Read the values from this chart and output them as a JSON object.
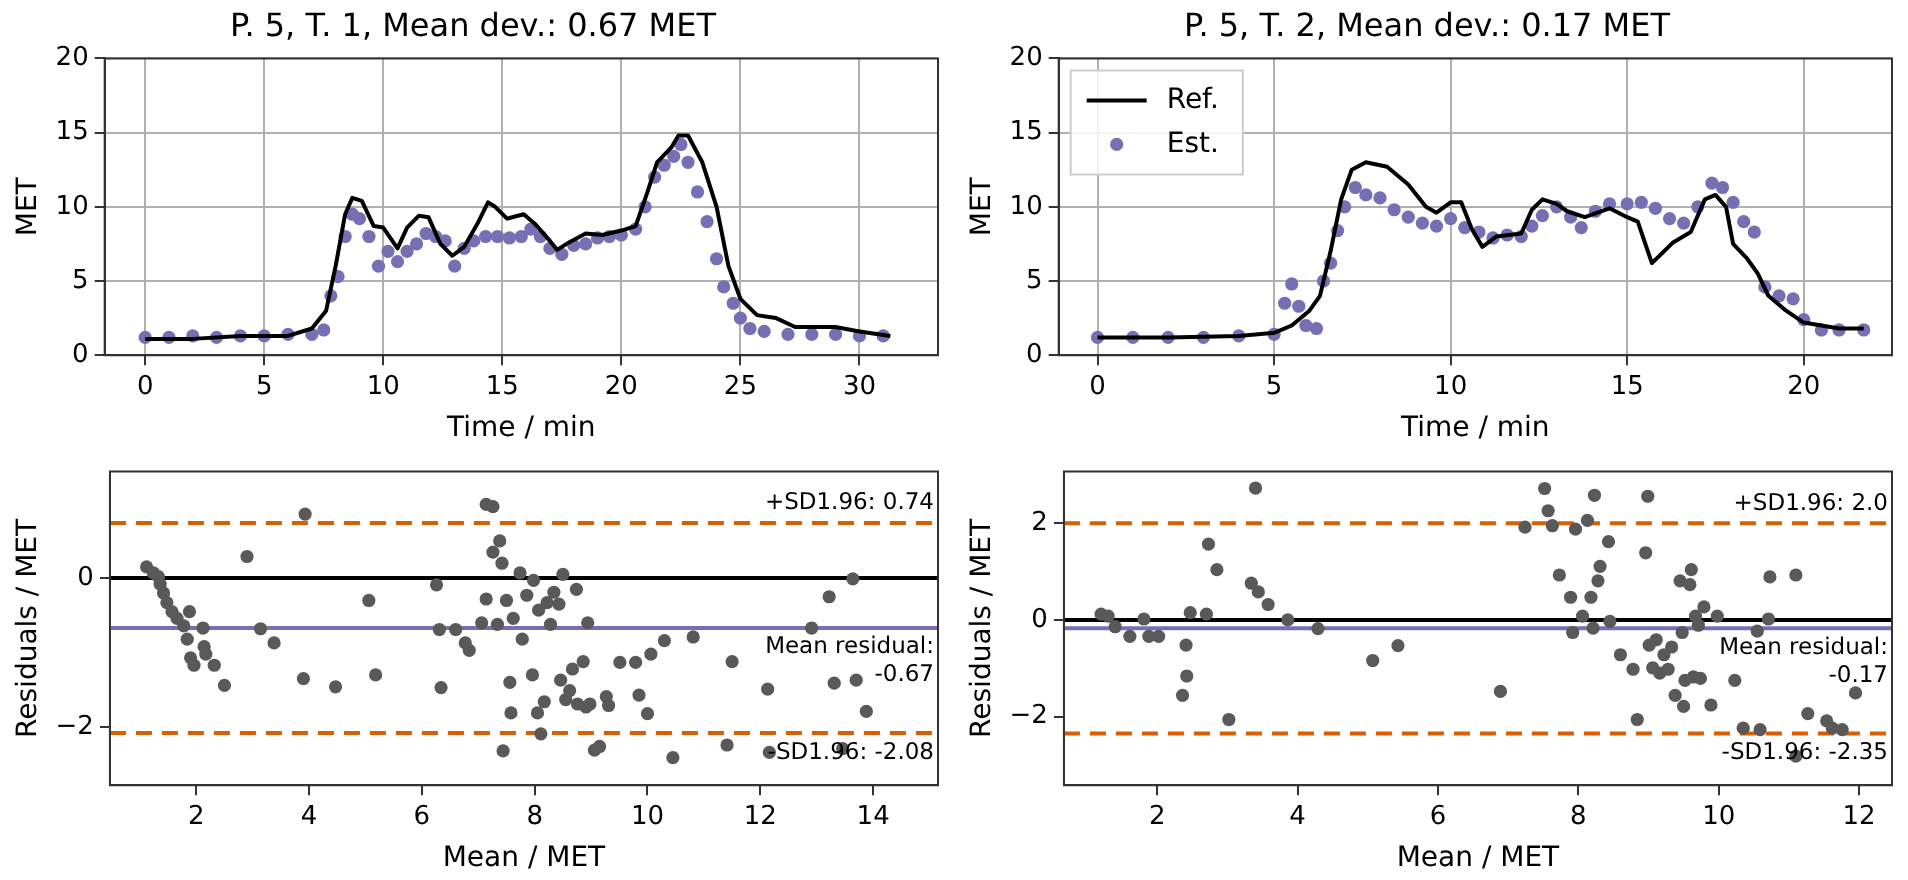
{
  "chart_data": [
    {
      "type": "line",
      "title": "P. 5, T. 1, Mean dev.: 0.67 MET",
      "xlabel": "Time / min",
      "ylabel": "MET",
      "xlim": [
        -1.7,
        33.3
      ],
      "ylim": [
        0,
        20
      ],
      "xticks": [
        0,
        5,
        10,
        15,
        20,
        25,
        30
      ],
      "yticks": [
        0,
        5,
        10,
        15,
        20
      ],
      "grid": true,
      "legend": false,
      "series": [
        {
          "color": "#000000",
          "x": [
            0,
            2,
            4,
            6,
            7,
            7.6,
            8,
            8.4,
            8.7,
            9.1,
            9.6,
            10,
            10.6,
            11,
            11.5,
            11.9,
            12.4,
            12.9,
            13.4,
            14,
            14.4,
            14.7,
            15.2,
            15.9,
            16.4,
            17,
            17.3,
            17.8,
            18.5,
            19.2,
            20,
            20.6,
            21.1,
            21.5,
            22.1,
            22.4,
            22.8,
            23.4,
            24,
            24.5,
            25,
            25.7,
            26.5,
            27.3,
            29,
            30,
            31.3
          ],
          "values": [
            1.1,
            1.1,
            1.3,
            1.3,
            1.8,
            3,
            6,
            9.5,
            10.6,
            10.4,
            8.7,
            8.6,
            7.2,
            8.6,
            9.4,
            9.3,
            7.5,
            6.7,
            7.3,
            9,
            10.3,
            10,
            9.2,
            9.5,
            8.8,
            7.7,
            7.1,
            7.6,
            8.2,
            8.1,
            8.4,
            8.7,
            11,
            13,
            14,
            14.8,
            14.8,
            13,
            10,
            6,
            3.8,
            2.7,
            2.5,
            1.9,
            1.9,
            1.6,
            1.3
          ]
        },
        {
          "type": "scatter",
          "marker": "circle",
          "color": "#7570b3",
          "x": [
            0,
            1,
            2,
            3,
            4,
            5,
            6,
            7,
            7.5,
            7.8,
            8.1,
            8.4,
            8.7,
            9,
            9.4,
            9.8,
            10.2,
            10.6,
            11,
            11.4,
            11.8,
            12.2,
            12.6,
            13,
            13.4,
            13.8,
            14.3,
            14.8,
            15.3,
            15.8,
            16.2,
            16.6,
            17,
            17.5,
            18,
            18.5,
            19,
            19.5,
            20,
            20.6,
            21,
            21.4,
            21.8,
            22.2,
            22.5,
            22.8,
            23.2,
            23.6,
            24,
            24.3,
            24.7,
            25,
            25.4,
            26,
            27,
            28,
            29,
            30,
            31
          ],
          "values": [
            1.2,
            1.2,
            1.3,
            1.2,
            1.3,
            1.3,
            1.4,
            1.4,
            1.7,
            4,
            5.3,
            8,
            9.5,
            9.2,
            8,
            6,
            7,
            6.3,
            7,
            7.5,
            8.2,
            8,
            7.7,
            6,
            7.2,
            7.7,
            8,
            8,
            7.9,
            8,
            8.5,
            8,
            7.2,
            6.8,
            7.4,
            7.5,
            7.9,
            8,
            8.1,
            8.5,
            10,
            12,
            12.8,
            13.4,
            14.2,
            13,
            11,
            9,
            6.5,
            4.6,
            3.5,
            2.5,
            1.8,
            1.6,
            1.4,
            1.4,
            1.4,
            1.3,
            1.3
          ]
        }
      ]
    },
    {
      "type": "line",
      "title": "P. 5, T. 2, Mean dev.: 0.17 MET",
      "xlabel": "Time / min",
      "ylabel": "MET",
      "xlim": [
        -1.1,
        22.5
      ],
      "ylim": [
        0,
        20
      ],
      "xticks": [
        0,
        5,
        10,
        15,
        20
      ],
      "yticks": [
        0,
        5,
        10,
        15,
        20
      ],
      "grid": true,
      "legend": "top left",
      "series": [
        {
          "name": "Ref.",
          "color": "#000000",
          "x": [
            0,
            2,
            4,
            5,
            5.5,
            6,
            6.3,
            6.6,
            6.9,
            7.2,
            7.6,
            8.2,
            8.8,
            9.3,
            9.6,
            10,
            10.3,
            10.6,
            10.9,
            11.3,
            12,
            12.3,
            12.6,
            13,
            13.3,
            13.8,
            14.5,
            15,
            15.3,
            15.7,
            16.3,
            16.8,
            17.2,
            17.5,
            17.8,
            18,
            18.4,
            18.7,
            19,
            19.5,
            20,
            21,
            21.7
          ],
          "values": [
            1.2,
            1.2,
            1.3,
            1.5,
            2,
            3,
            4,
            7,
            10.5,
            12.5,
            13,
            12.7,
            11.5,
            10,
            9.6,
            10.3,
            10.3,
            8.5,
            7.3,
            8,
            8.2,
            9.8,
            10.5,
            10.2,
            9.7,
            9.3,
            9.9,
            9.3,
            9,
            6.2,
            7.6,
            8.3,
            10.5,
            10.8,
            10,
            7.5,
            6.5,
            5.5,
            4,
            3,
            2.2,
            1.8,
            1.8
          ]
        },
        {
          "name": "Est.",
          "type": "scatter",
          "marker": "circle",
          "color": "#7570b3",
          "x": [
            0,
            1,
            2,
            3,
            4,
            5,
            5.3,
            5.5,
            5.7,
            5.9,
            6.2,
            6.4,
            6.6,
            6.8,
            7,
            7.3,
            7.6,
            8,
            8.4,
            8.8,
            9.2,
            9.6,
            10,
            10.4,
            10.8,
            11.2,
            11.6,
            12,
            12.3,
            12.6,
            13,
            13.4,
            13.7,
            14.1,
            14.5,
            15,
            15.4,
            15.8,
            16.2,
            16.6,
            17,
            17.4,
            17.7,
            18,
            18.3,
            18.6,
            18.9,
            19.3,
            19.7,
            20,
            20.5,
            21,
            21.7
          ],
          "values": [
            1.2,
            1.2,
            1.2,
            1.2,
            1.3,
            1.4,
            3.5,
            4.8,
            3.3,
            2,
            1.8,
            5,
            6.2,
            8.4,
            10,
            11.3,
            10.8,
            10.6,
            9.8,
            9.3,
            8.9,
            8.7,
            9.2,
            8.6,
            8.3,
            7.9,
            8.1,
            8,
            8.7,
            9.4,
            10,
            9.3,
            8.6,
            9.7,
            10.2,
            10.2,
            10.3,
            9.9,
            9.2,
            8.9,
            10,
            11.6,
            11.3,
            10.3,
            9,
            8.3,
            4.6,
            4,
            3.8,
            2.4,
            1.7,
            1.7,
            1.7
          ]
        }
      ]
    },
    {
      "type": "scatter",
      "xlabel": "Mean / MET",
      "ylabel": "Residuals / MET",
      "xlim": [
        0.47,
        15.15
      ],
      "ylim": [
        -2.78,
        1.43
      ],
      "xticks": [
        2,
        4,
        6,
        8,
        10,
        12,
        14
      ],
      "yticks": [
        -2,
        0
      ],
      "grid": false,
      "marker": "circle",
      "color": "#595959",
      "x": [
        1.12,
        1.24,
        1.33,
        1.36,
        1.42,
        1.48,
        1.57,
        1.66,
        1.78,
        1.88,
        1.84,
        1.9,
        1.96,
        2.12,
        2.14,
        2.17,
        2.32,
        2.5,
        2.9,
        3.14,
        3.38,
        3.93,
        3.9,
        4.47,
        5.06,
        5.18,
        6.26,
        6.31,
        6.34,
        6.6,
        6.77,
        6.84,
        7.06,
        7.14,
        7.26,
        7.14,
        7.26,
        7.38,
        7.42,
        7.34,
        7.5,
        7.44,
        7.56,
        7.58,
        7.62,
        7.74,
        7.78,
        7.86,
        7.98,
        7.96,
        8.07,
        8.05,
        8.11,
        8.17,
        8.22,
        8.28,
        8.34,
        8.43,
        8.46,
        8.5,
        8.55,
        8.62,
        8.67,
        8.74,
        8.76,
        8.86,
        8.91,
        8.94,
        8.98,
        9.06,
        9.15,
        9.27,
        9.31,
        9.51,
        9.79,
        9.85,
        10.0,
        10.06,
        10.3,
        10.45,
        10.81,
        11.41,
        11.5,
        12.13,
        12.16,
        12.91,
        13.22,
        13.31,
        13.46,
        13.64,
        13.7,
        13.88
      ],
      "values": [
        0.15,
        0.07,
        0.02,
        -0.08,
        -0.2,
        -0.33,
        -0.45,
        -0.54,
        -0.64,
        -0.45,
        -0.82,
        -1.07,
        -1.17,
        -0.67,
        -0.92,
        -1.02,
        -1.17,
        -1.44,
        0.29,
        -0.68,
        -0.87,
        0.86,
        -1.35,
        -1.46,
        -0.3,
        -1.3,
        -0.09,
        -0.69,
        -1.47,
        -0.69,
        -0.87,
        -0.97,
        -0.6,
        0.99,
        0.96,
        -0.28,
        0.35,
        0.5,
        0.2,
        -0.62,
        -0.3,
        -2.32,
        -1.4,
        -1.81,
        -0.54,
        0.07,
        -0.82,
        -0.23,
        -0.03,
        -1.3,
        -0.43,
        -1.81,
        -2.09,
        -1.66,
        -0.33,
        -0.62,
        -0.19,
        -0.35,
        -1.37,
        0.05,
        -1.63,
        -1.51,
        -1.22,
        -0.15,
        -1.69,
        -1.12,
        -1.73,
        -0.6,
        -1.69,
        -2.31,
        -2.26,
        -1.59,
        -1.71,
        -1.13,
        -1.13,
        -1.57,
        -1.82,
        -1.02,
        -0.84,
        -2.41,
        -0.79,
        -2.24,
        -1.12,
        -1.49,
        -2.34,
        -0.67,
        -0.25,
        -1.41,
        -2.29,
        -0.01,
        -1.37,
        -1.79
      ],
      "ref_lines": [
        {
          "axis": "y",
          "value": 0,
          "color": "#000000",
          "line_style": "solid"
        },
        {
          "axis": "y",
          "value": -0.67,
          "label": "Mean residual:\n-0.67",
          "color": "#7570b3",
          "line_style": "solid"
        },
        {
          "axis": "y",
          "value": 0.74,
          "label": "+SD1.96: 0.74",
          "color": "#d95f02",
          "line_style": "dashed"
        },
        {
          "axis": "y",
          "value": -2.08,
          "label": "-SD1.96: -2.08",
          "color": "#d95f02",
          "line_style": "dashed"
        }
      ]
    },
    {
      "type": "scatter",
      "xlabel": "Mean / MET",
      "ylabel": "Residuals / MET",
      "xlim": [
        0.67,
        12.47
      ],
      "ylim": [
        -3.42,
        3.07
      ],
      "xticks": [
        2,
        4,
        6,
        8,
        10,
        12
      ],
      "yticks": [
        -2,
        0,
        2
      ],
      "grid": false,
      "marker": "circle",
      "color": "#595959",
      "x": [
        1.2,
        1.3,
        1.4,
        1.61,
        1.81,
        1.88,
        2.02,
        2.36,
        2.41,
        2.42,
        2.47,
        2.7,
        2.73,
        2.85,
        3.02,
        3.34,
        3.4,
        3.44,
        3.58,
        3.86,
        4.29,
        5.07,
        5.43,
        6.89,
        7.24,
        7.52,
        7.57,
        7.63,
        7.73,
        7.89,
        7.92,
        7.96,
        8.06,
        8.13,
        8.18,
        8.21,
        8.23,
        8.28,
        8.31,
        8.43,
        8.45,
        8.6,
        8.78,
        8.84,
        8.96,
        8.99,
        9.01,
        9.06,
        9.11,
        9.16,
        9.22,
        9.28,
        9.33,
        9.38,
        9.45,
        9.48,
        9.5,
        9.52,
        9.59,
        9.61,
        9.64,
        9.67,
        9.71,
        9.74,
        9.79,
        9.89,
        9.98,
        10.23,
        10.35,
        10.55,
        10.59,
        10.71,
        10.73,
        11.1,
        11.1,
        11.27,
        11.54,
        11.62,
        11.76,
        11.95
      ],
      "values": [
        0.12,
        0.08,
        -0.14,
        -0.34,
        0.02,
        -0.34,
        -0.34,
        -1.56,
        -0.52,
        -1.16,
        0.15,
        0.12,
        1.57,
        1.04,
        -2.06,
        0.76,
        2.73,
        0.58,
        0.32,
        0,
        -0.18,
        -0.84,
        -0.53,
        -1.48,
        1.92,
        2.72,
        2.26,
        1.95,
        0.93,
        0.47,
        -0.26,
        1.88,
        0.08,
        2.06,
        0.47,
        -0.17,
        2.58,
        0.81,
        1.11,
        1.62,
        -0.03,
        -0.72,
        -1.02,
        -2.06,
        1.39,
        2.56,
        -0.52,
        -0.99,
        -0.41,
        -1.1,
        -0.72,
        -1.02,
        -0.56,
        -1.56,
        0.81,
        -0.26,
        -1.79,
        -1.25,
        0.73,
        1.04,
        -1.18,
        0.08,
        -0.11,
        -1.21,
        0.27,
        -1.76,
        0.08,
        -1.25,
        -2.24,
        -0.23,
        -2.27,
        0.02,
        0.89,
        0.93,
        -2.82,
        -1.94,
        -2.09,
        -2.24,
        -2.27,
        -1.51
      ],
      "ref_lines": [
        {
          "axis": "y",
          "value": 0,
          "color": "#000000",
          "line_style": "solid"
        },
        {
          "axis": "y",
          "value": -0.17,
          "label": "Mean residual:\n-0.17",
          "color": "#7570b3",
          "line_style": "solid"
        },
        {
          "axis": "y",
          "value": 2.0,
          "label": "+SD1.96: 2.0",
          "color": "#d95f02",
          "line_style": "dashed"
        },
        {
          "axis": "y",
          "value": -2.35,
          "label": "-SD1.96: -2.35",
          "color": "#d95f02",
          "line_style": "dashed"
        }
      ]
    }
  ]
}
